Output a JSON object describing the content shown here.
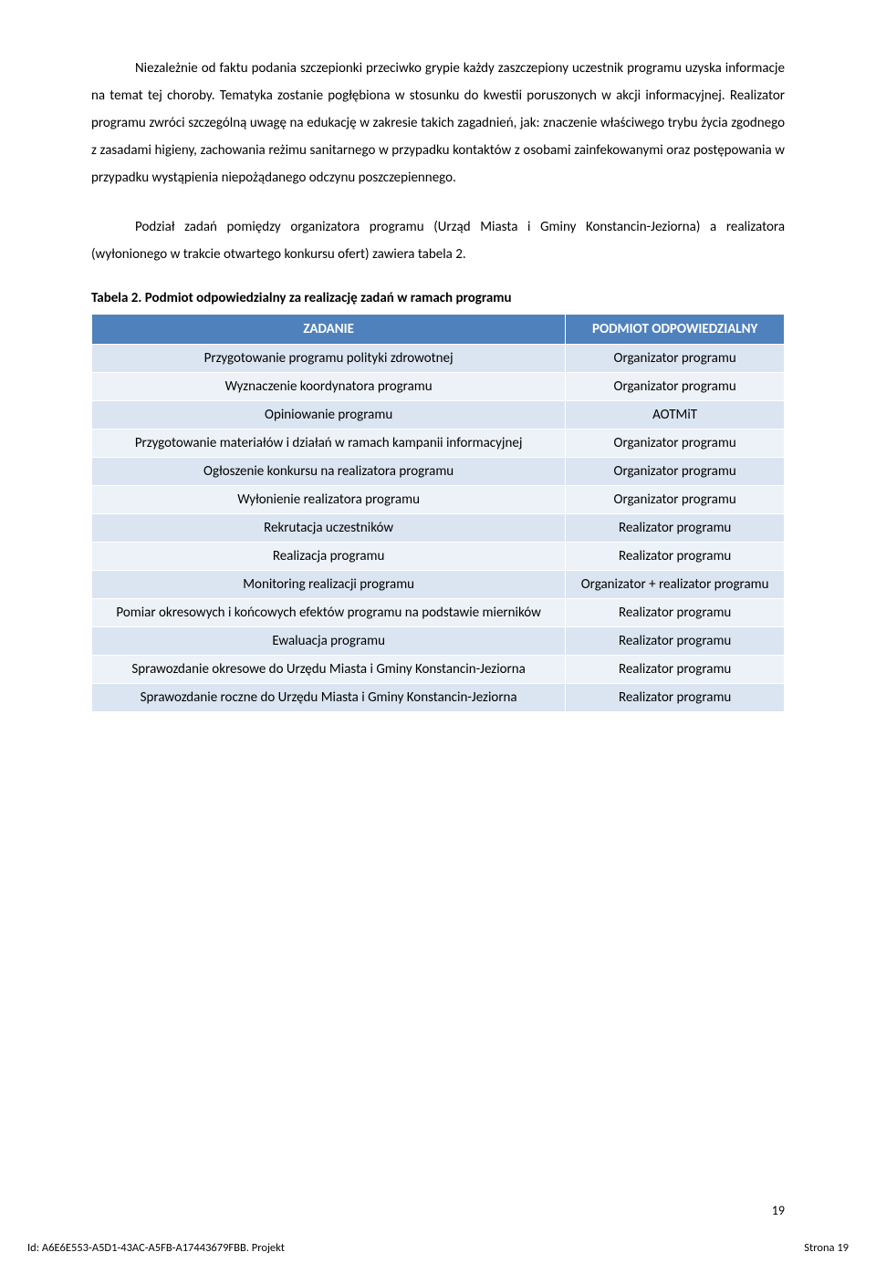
{
  "paragraphs": {
    "p1": "Niezależnie od faktu podania szczepionki przeciwko grypie każdy zaszczepiony uczestnik programu uzyska informacje na temat tej choroby. Tematyka zostanie pogłębiona w stosunku do kwestii poruszonych w akcji informacyjnej. Realizator programu zwróci szczególną uwagę na edukację w zakresie takich zagadnień, jak: znaczenie właściwego trybu życia zgodnego z zasadami higieny, zachowania reżimu sanitarnego w przypadku kontaktów z osobami zainfekowanymi oraz postępowania w przypadku wystąpienia niepożądanego odczynu poszczepiennego.",
    "p2": "Podział zadań pomiędzy organizatora programu (Urząd Miasta i Gminy Konstancin-Jeziorna) a realizatora (wyłonionego w trakcie otwartego konkursu ofert) zawiera tabela 2."
  },
  "table": {
    "title": "Tabela 2. Podmiot odpowiedzialny za realizację zadań w ramach programu",
    "headers": {
      "col1": "ZADANIE",
      "col2": "PODMIOT ODPOWIEDZIALNY"
    },
    "rows": [
      {
        "task": "Przygotowanie programu polityki zdrowotnej",
        "entity": "Organizator programu"
      },
      {
        "task": "Wyznaczenie koordynatora programu",
        "entity": "Organizator programu"
      },
      {
        "task": "Opiniowanie programu",
        "entity": "AOTMiT"
      },
      {
        "task": "Przygotowanie materiałów i działań w ramach kampanii informacyjnej",
        "entity": "Organizator programu"
      },
      {
        "task": "Ogłoszenie konkursu na realizatora programu",
        "entity": "Organizator programu"
      },
      {
        "task": "Wyłonienie realizatora programu",
        "entity": "Organizator programu"
      },
      {
        "task": "Rekrutacja uczestników",
        "entity": "Realizator programu"
      },
      {
        "task": "Realizacja programu",
        "entity": "Realizator programu"
      },
      {
        "task": "Monitoring realizacji programu",
        "entity": "Organizator + realizator programu"
      },
      {
        "task": "Pomiar okresowych i końcowych efektów programu na podstawie mierników",
        "entity": "Realizator programu"
      },
      {
        "task": "Ewaluacja programu",
        "entity": "Realizator programu"
      },
      {
        "task": "Sprawozdanie okresowe do Urzędu Miasta i Gminy Konstancin-Jeziorna",
        "entity": "Realizator programu"
      },
      {
        "task": "Sprawozdanie roczne do Urzędu Miasta i Gminy Konstancin-Jeziorna",
        "entity": "Realizator programu"
      }
    ],
    "header_bg": "#4f81bd",
    "header_fg": "#ffffff",
    "row_odd_bg": "#dbe5f1",
    "row_even_bg": "#edf2f8",
    "border_color": "#ffffff",
    "font_size": 15
  },
  "page_number": "19",
  "footer": {
    "id_line": "Id: A6E6E553-A5D1-43AC-A5FB-A17443679FBB. Projekt",
    "strona": "Strona 19"
  },
  "colors": {
    "text": "#000000",
    "background": "#ffffff"
  },
  "typography": {
    "body_font_size": 15,
    "body_line_height": 2.0,
    "title_font_weight": "bold",
    "font_family": "Calibri"
  }
}
